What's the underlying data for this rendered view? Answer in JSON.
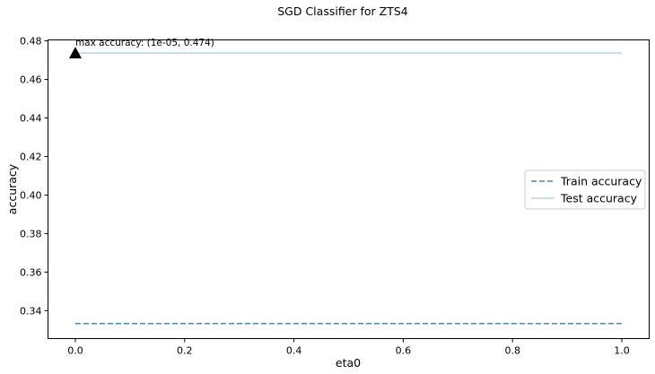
{
  "chart_data": {
    "type": "line",
    "title": "SGD Classifier for ZTS4",
    "xlabel": "eta0",
    "ylabel": "accuracy",
    "xlim": [
      -0.05,
      1.05
    ],
    "ylim": [
      0.3255,
      0.4805
    ],
    "xticks": [
      0.0,
      0.2,
      0.4,
      0.6,
      0.8,
      1.0
    ],
    "xtick_labels": [
      "0.0",
      "0.2",
      "0.4",
      "0.6",
      "0.8",
      "1.0"
    ],
    "yticks": [
      0.34,
      0.36,
      0.38,
      0.4,
      0.42,
      0.44,
      0.46,
      0.48
    ],
    "ytick_labels": [
      "0.34",
      "0.36",
      "0.38",
      "0.40",
      "0.42",
      "0.44",
      "0.46",
      "0.48"
    ],
    "grid": false,
    "legend_position": "center-right",
    "series": [
      {
        "name": "Train accuracy",
        "style": "dashed",
        "color": "#4a86c0",
        "x": [
          1e-05,
          1.0
        ],
        "y": [
          0.3333,
          0.3333
        ]
      },
      {
        "name": "Test accuracy",
        "style": "solid",
        "color": "#aed8ee",
        "x": [
          1e-05,
          1.0
        ],
        "y": [
          0.4737,
          0.4737
        ]
      }
    ],
    "annotation": {
      "text": "max accuracy: (1e-05, 0.474)",
      "marker": "triangle",
      "x": 1e-05,
      "y": 0.4737
    }
  }
}
